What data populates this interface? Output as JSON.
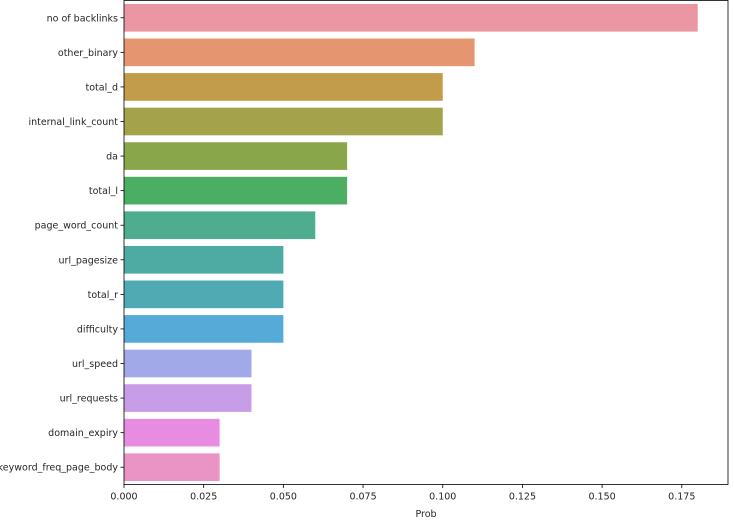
{
  "chart_data": {
    "type": "bar",
    "orientation": "horizontal",
    "categories": [
      "no of backlinks",
      "other_binary",
      "total_d",
      "internal_link_count",
      "da",
      "total_l",
      "page_word_count",
      "url_pagesize",
      "total_r",
      "difficulty",
      "url_speed",
      "url_requests",
      "domain_expiry",
      "keyword_freq_page_body"
    ],
    "values": [
      0.18,
      0.11,
      0.1,
      0.1,
      0.07,
      0.07,
      0.06,
      0.05,
      0.05,
      0.05,
      0.04,
      0.04,
      0.03,
      0.03
    ],
    "colors": [
      "#ea96a3",
      "#e59670",
      "#c29b4b",
      "#a4a24b",
      "#8aa64b",
      "#4bae62",
      "#4eac8f",
      "#4daba4",
      "#4faab4",
      "#55aad8",
      "#a2a9e9",
      "#c89de8",
      "#e88ce1",
      "#e994c5"
    ],
    "xlabel": "Prob",
    "ylabel": "",
    "title": "",
    "xlim": [
      0,
      0.1895
    ],
    "xticks": [
      "0.000",
      "0.025",
      "0.050",
      "0.075",
      "0.100",
      "0.125",
      "0.150",
      "0.175"
    ],
    "grid": false,
    "legend": "none"
  }
}
